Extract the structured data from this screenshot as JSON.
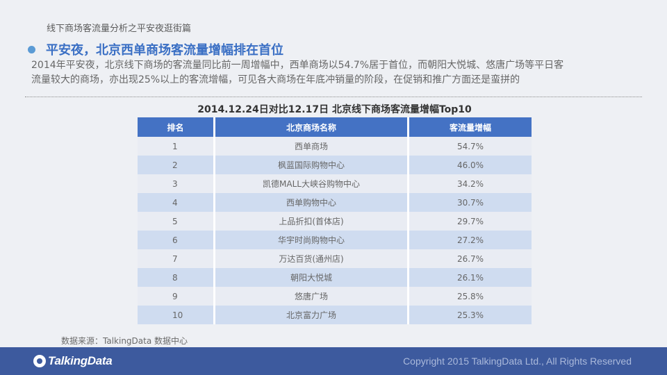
{
  "page": {
    "caption": "线下商场客流量分析之平安夜逛街篇",
    "headline": "平安夜，北京西单商场客流量增幅排在首位",
    "body_line1": "2014年平安夜，北京线下商场的客流量同比前一周增幅中，西单商场以54.7%居于首位，而朝阳大悦城、悠唐广场等平日客",
    "body_line2": "流量较大的商场，亦出现25%以上的客流增幅，可见各大商场在年底冲销量的阶段，在促销和推广方面还是蛮拼的"
  },
  "table": {
    "title": "2014.12.24日对比12.17日  北京线下商场客流量增幅Top10",
    "headers": {
      "rank": "排名",
      "name": "北京商场名称",
      "growth": "客流量增幅"
    },
    "rows": [
      {
        "rank": "1",
        "name": "西单商场",
        "growth": "54.7%"
      },
      {
        "rank": "2",
        "name": "枫蓝国际购物中心",
        "growth": "46.0%"
      },
      {
        "rank": "3",
        "name": "凯德MALL大峡谷购物中心",
        "growth": "34.2%"
      },
      {
        "rank": "4",
        "name": "西单购物中心",
        "growth": "30.7%"
      },
      {
        "rank": "5",
        "name": "上品折扣(首体店)",
        "growth": "29.7%"
      },
      {
        "rank": "6",
        "name": "华宇时尚购物中心",
        "growth": "27.2%"
      },
      {
        "rank": "7",
        "name": "万达百货(通州店)",
        "growth": "26.7%"
      },
      {
        "rank": "8",
        "name": "朝阳大悦城",
        "growth": "26.1%"
      },
      {
        "rank": "9",
        "name": "悠唐广场",
        "growth": "25.8%"
      },
      {
        "rank": "10",
        "name": "北京富力广场",
        "growth": "25.3%"
      }
    ]
  },
  "source": "数据来源：TalkingData 数据中心",
  "footer": {
    "logo_text": "TalkingData",
    "logo_icon": "talkingdata-logo-icon",
    "copyright": "Copyright 2015 TalkingData Ltd., All Rights Reserved"
  },
  "colors": {
    "accent": "#3a6fc4",
    "header_bg": "#4472c4",
    "row_light": "#e9ecf3",
    "row_dark": "#cfdcf0",
    "footer_bg": "#3d5a9e"
  }
}
